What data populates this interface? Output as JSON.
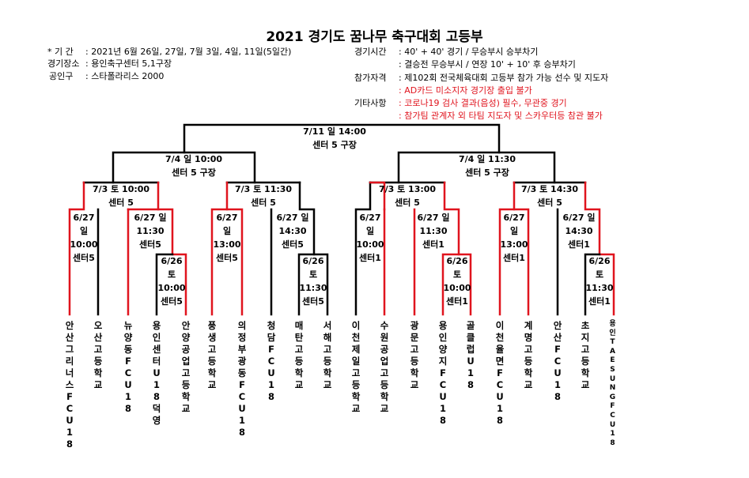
{
  "title": "2021 경기도 꿈나무 축구대회 고등부",
  "info": {
    "period_label": "* 기 간",
    "period_value": ": 2021년 6월 26일, 27일, 7월 3일, 4일, 11일(5일간)",
    "venue_label": "경기장소",
    "venue_value": ": 용인축구센터 5,1구장",
    "ball_label": "공인구",
    "ball_value": ": 스타폴라리스 2000",
    "time_label": "경기시간",
    "time_value1": ": 40' + 40' 경기 / 무승부시 승부차기",
    "time_value2": ": 결승전 무승부시 / 연장 10' + 10' 후 승부차기",
    "eligibility_label": "참가자격",
    "eligibility_value": ": 제102회 전국체육대회 고등부 참가 가능 선수 및 지도자",
    "eligibility_note": ": AD카드 미소지자 경기장 출입 불가",
    "other_label": "기타사항",
    "other_value1": ": 코로나19 검사 결과(음성) 필수, 무관중 경기",
    "other_value2": ": 참가팀 관계자 외 타팀 지도자 및 스카우터등 참관 불가"
  },
  "matches": {
    "final": {
      "date": "7/11 일 14:00",
      "venue": "센터 5 구장"
    },
    "semi_left": {
      "date": "7/4 일 10:00",
      "venue": "센터 5 구장"
    },
    "semi_right": {
      "date": "7/4 일 11:30",
      "venue": "센터 5 구장"
    },
    "qf1": {
      "date": "7/3 토 10:00",
      "venue": "센터 5"
    },
    "qf2": {
      "date": "7/3 토 11:30",
      "venue": "센터 5"
    },
    "qf3": {
      "date": "7/3 토 13:00",
      "venue": "센터 5"
    },
    "qf4": {
      "date": "7/3 토 14:30",
      "venue": "센터 5"
    },
    "r16_1": {
      "d": "6/27",
      "w": "일",
      "t": "10:00",
      "v": "센터5"
    },
    "r16_2": {
      "d": "6/27 일",
      "t": "11:30",
      "v": "센터5"
    },
    "r16_3": {
      "d": "6/27",
      "w": "일",
      "t": "13:00",
      "v": "센터5"
    },
    "r16_4": {
      "d": "6/27 일",
      "t": "14:30",
      "v": "센터5"
    },
    "r16_5": {
      "d": "6/27",
      "w": "일",
      "t": "10:00",
      "v": "센터1"
    },
    "r16_6": {
      "d": "6/27 일",
      "t": "11:30",
      "v": "센터1"
    },
    "r16_7": {
      "d": "6/27",
      "w": "일",
      "t": "13:00",
      "v": "센터1"
    },
    "r16_8": {
      "d": "6/27 일",
      "t": "14:30",
      "v": "센터1"
    },
    "r32_1": {
      "d": "6/26",
      "w": "토",
      "t": "10:00",
      "v": "센터5"
    },
    "r32_2": {
      "d": "6/26",
      "w": "토",
      "t": "11:30",
      "v": "센터5"
    },
    "r32_3": {
      "d": "6/26",
      "w": "토",
      "t": "10:00",
      "v": "센터1"
    },
    "r32_4": {
      "d": "6/26",
      "w": "토",
      "t": "11:30",
      "v": "센터1"
    }
  },
  "teams": [
    "안산그리너스FCU18",
    "오산고등학교",
    "뉴양동FCU18",
    "용인센터U18덕영",
    "안양공업고등학교",
    "풍생고등학교",
    "의정부광동FCU18",
    "청담FCU18",
    "매탄고등학교",
    "서해고등학교",
    "이천제일고등학교",
    "수원공업고등학교",
    "광문고등학교",
    "용인양지FCU18",
    "골클럽U18",
    "이천율면FCU18",
    "계명고등학교",
    "안산FCU18",
    "초지고등학교",
    "용인TAESUNGFCU18"
  ],
  "colors": {
    "winner_line": "#e0141e",
    "line": "#000000"
  }
}
